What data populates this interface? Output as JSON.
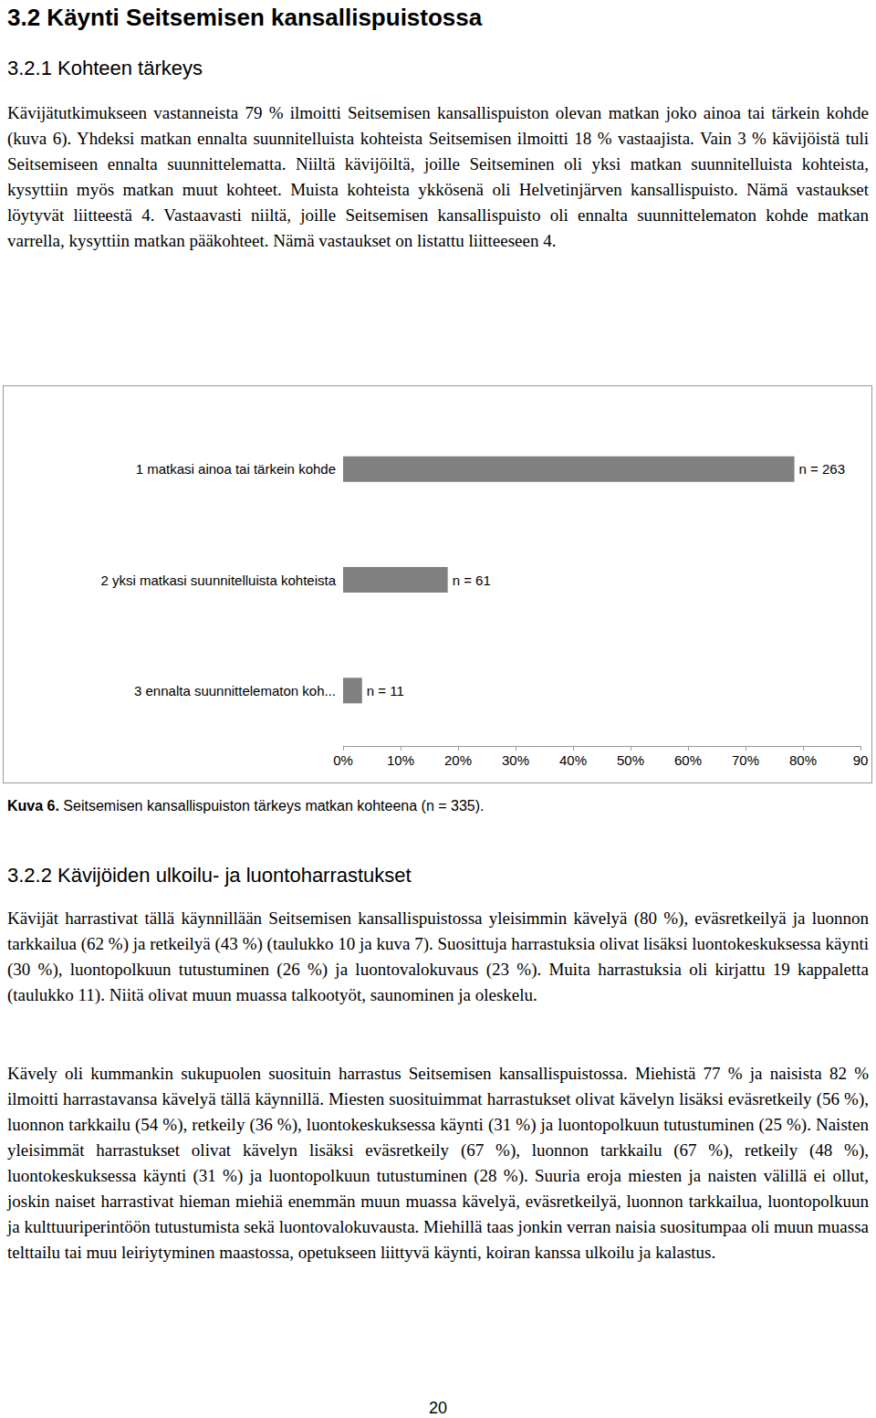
{
  "heading": "3.2 Käynti Seitsemisen kansallispuistossa",
  "section1": {
    "title": "3.2.1 Kohteen tärkeys",
    "paragraph": "Kävijätutkimukseen vastanneista 79 % ilmoitti Seitsemisen kansallispuiston olevan matkan joko ainoa tai tärkein kohde (kuva 6). Yhdeksi matkan ennalta suunnitelluista kohteista Seitsemisen ilmoitti 18 % vastaajista. Vain 3 % kävijöistä tuli Seitsemiseen ennalta suunnittelematta. Niiltä kävijöiltä, joille Seitseminen oli yksi matkan suunnitelluista kohteista, kysyttiin myös matkan muut kohteet. Muista kohteista ykkösenä oli Helvetinjärven kansallispuisto. Nämä vastaukset löytyvät liitteestä 4. Vastaavasti niiltä, joille Seitsemisen kansallispuisto oli ennalta suunnittelematon kohde matkan varrella, kysyttiin matkan pääkohteet. Nämä vastaukset on listattu liitteeseen 4."
  },
  "chart_data": {
    "type": "bar",
    "orientation": "horizontal",
    "categories": [
      "1 matkasi ainoa tai tärkein kohde",
      "2 yksi matkasi suunnitelluista kohteista",
      "3 ennalta suunnittelematon koh..."
    ],
    "values": [
      78.5,
      18.2,
      3.3
    ],
    "count_labels": [
      "n = 263",
      "n = 61",
      "n = 11"
    ],
    "color": "#808080",
    "xlim": [
      0,
      90
    ],
    "xticks": [
      {
        "value": 0,
        "label": "0%"
      },
      {
        "value": 10,
        "label": "10%"
      },
      {
        "value": 20,
        "label": "20%"
      },
      {
        "value": 30,
        "label": "30%"
      },
      {
        "value": 40,
        "label": "40%"
      },
      {
        "value": 50,
        "label": "50%"
      },
      {
        "value": 60,
        "label": "60%"
      },
      {
        "value": 70,
        "label": "70%"
      },
      {
        "value": 80,
        "label": "80%"
      },
      {
        "value": 90,
        "label": "90"
      }
    ],
    "grid": false
  },
  "caption": {
    "label": "Kuva 6.",
    "text": "Seitsemisen kansallispuiston tärkeys matkan kohteena (n = 335)."
  },
  "section2": {
    "title": "3.2.2 Kävijöiden ulkoilu- ja luontoharrastukset",
    "paragraphs": [
      "Kävijät harrastivat tällä käynnillään Seitsemisen kansallispuistossa yleisimmin kävelyä (80 %), eväsretkeilyä ja luonnon tarkkailua (62 %) ja retkeilyä (43 %) (taulukko 10 ja kuva 7). Suosittuja harrastuksia olivat lisäksi luontokeskuksessa käynti (30 %), luontopolkuun tutustuminen (26 %) ja luontovalokuvaus (23 %). Muita harrastuksia oli kirjattu 19 kappaletta (taulukko 11). Niitä olivat muun muassa talkootyöt, saunominen ja oleskelu.",
      "Kävely oli kummankin sukupuolen suosituin harrastus Seitsemisen kansallispuistossa. Miehistä 77 % ja naisista 82 % ilmoitti harrastavansa kävelyä tällä käynnillä. Miesten suosituimmat harrastukset olivat kävelyn lisäksi eväsretkeily (56 %), luonnon tarkkailu (54 %), retkeily (36 %), luontokeskuksessa käynti (31 %) ja luontopolkuun tutustuminen (25 %). Naisten yleisimmät harrastukset olivat kävelyn lisäksi eväsretkeily (67 %), luonnon tarkkailu (67 %), retkeily (48 %), luontokeskuksessa käynti (31 %) ja luontopolkuun tutustuminen (28 %). Suuria eroja miesten ja naisten välillä ei ollut, joskin naiset harrastivat hieman miehiä enemmän muun muassa kävelyä, eväsretkeilyä, luonnon tarkkailua, luontopolkuun ja kulttuuriperintöön tutustumista sekä luontovalokuvausta. Miehillä taas jonkin verran naisia suositumpaa oli muun muassa telttailu tai muu leiriytyminen maastossa, opetukseen liittyvä käynti, koiran kanssa ulkoilu ja kalastus."
    ]
  },
  "page_number": 20
}
